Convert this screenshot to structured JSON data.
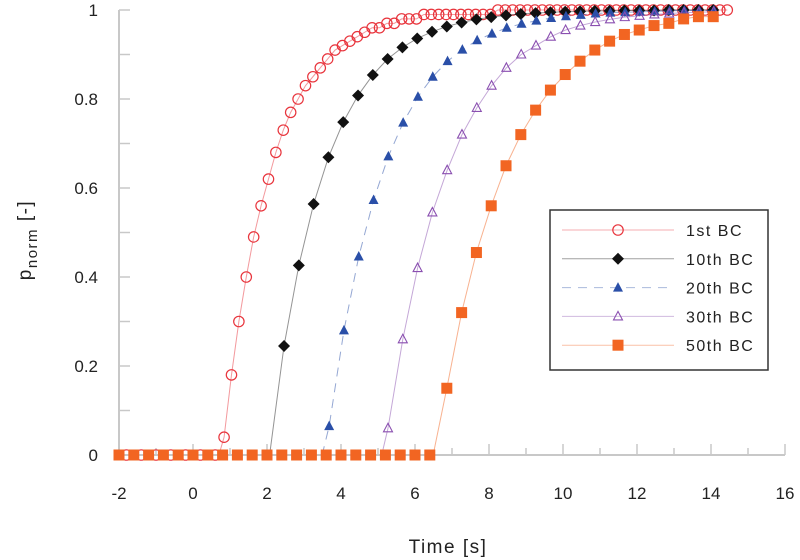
{
  "chart_data": {
    "type": "line",
    "title": "",
    "xlabel": "Time [s]",
    "ylabel_main": "p",
    "ylabel_sub": "norm",
    "ylabel_unit": " [-]",
    "xlim": [
      -2,
      16
    ],
    "ylim": [
      0,
      1
    ],
    "x_ticks": [
      "-2",
      "0",
      "2",
      "4",
      "6",
      "8",
      "10",
      "12",
      "14",
      "16"
    ],
    "y_ticks": [
      "0",
      "0.2",
      "0.4",
      "0.6",
      "0.8",
      "1"
    ],
    "grid": false,
    "legend_position": "center-right",
    "series": [
      {
        "name": "1st BC",
        "color": "#e8343c",
        "marker": "circle-open",
        "dash": false,
        "baseline_x": [
          -1.8,
          -1.4,
          -1.0,
          -0.6,
          -0.2,
          0.2,
          0.6
        ],
        "line_start_x": 0.7,
        "x_start": 0.84,
        "x_step": 0.2,
        "values": [
          0.04,
          0.18,
          0.3,
          0.4,
          0.49,
          0.56,
          0.62,
          0.68,
          0.73,
          0.77,
          0.8,
          0.83,
          0.85,
          0.87,
          0.89,
          0.91,
          0.92,
          0.93,
          0.94,
          0.95,
          0.96,
          0.96,
          0.97,
          0.97,
          0.98,
          0.98,
          0.98,
          0.99,
          0.99,
          0.99,
          0.99,
          0.99,
          0.99,
          0.99,
          0.99,
          0.99,
          0.99,
          1,
          1,
          1,
          1,
          1,
          1,
          1,
          1,
          1,
          1,
          1,
          1,
          1,
          1,
          1,
          1,
          1,
          1,
          1,
          1,
          1,
          1,
          1,
          1,
          1,
          1,
          1,
          1,
          1,
          1,
          1,
          1
        ]
      },
      {
        "name": "10th BC",
        "color": "#111111",
        "marker": "diamond",
        "dash": false,
        "baseline_x": [],
        "line_start_x": 2.07,
        "x_start": 2.46,
        "x_step": 0.4,
        "values": [
          0.245,
          0.426,
          0.564,
          0.669,
          0.748,
          0.808,
          0.854,
          0.89,
          0.916,
          0.936,
          0.951,
          0.963,
          0.972,
          0.979,
          0.984,
          0.988,
          0.991,
          0.993,
          0.995,
          0.996,
          0.997,
          0.998,
          0.998,
          0.999,
          0.999,
          0.999,
          1,
          1,
          1,
          1
        ]
      },
      {
        "name": "20th BC",
        "color": "#2a4fa8",
        "marker": "triangle",
        "dash": true,
        "baseline_x": [],
        "line_start_x": 3.49,
        "x_start": 3.68,
        "x_step": 0.4,
        "values": [
          0.065,
          0.28,
          0.446,
          0.573,
          0.671,
          0.747,
          0.805,
          0.85,
          0.885,
          0.911,
          0.932,
          0.947,
          0.96,
          0.969,
          0.976,
          0.982,
          0.986,
          0.989,
          0.992,
          0.994,
          0.995,
          0.996,
          0.997,
          0.998,
          0.999,
          0.999,
          0.999
        ]
      },
      {
        "name": "30th BC",
        "color": "#8a4fb0",
        "marker": "triangle-open",
        "dash": false,
        "baseline_x": [],
        "line_start_x": 5.1,
        "x_start": 5.27,
        "x_step": 0.4,
        "values": [
          0.06,
          0.26,
          0.42,
          0.545,
          0.64,
          0.72,
          0.78,
          0.83,
          0.87,
          0.9,
          0.92,
          0.94,
          0.955,
          0.965,
          0.973,
          0.979,
          0.984,
          0.987,
          0.99,
          0.992,
          0.994,
          0.995,
          0.996
        ]
      },
      {
        "name": "50th BC",
        "color": "#f26522",
        "marker": "square",
        "dash": false,
        "baseline_x": [
          -2.0,
          -1.6,
          -1.2,
          -0.8,
          -0.4,
          0.0,
          0.4,
          0.8,
          1.2,
          1.6,
          2.0,
          2.4,
          2.8,
          3.2,
          3.6,
          4.0,
          4.4,
          4.8,
          5.2,
          5.6,
          6.0,
          6.4
        ],
        "line_start_x": 6.49,
        "x_start": 6.86,
        "x_step": 0.4,
        "values": [
          0.15,
          0.32,
          0.455,
          0.56,
          0.65,
          0.72,
          0.775,
          0.82,
          0.855,
          0.885,
          0.91,
          0.93,
          0.945,
          0.955,
          0.965,
          0.97,
          0.98,
          0.985,
          0.985
        ]
      }
    ]
  }
}
